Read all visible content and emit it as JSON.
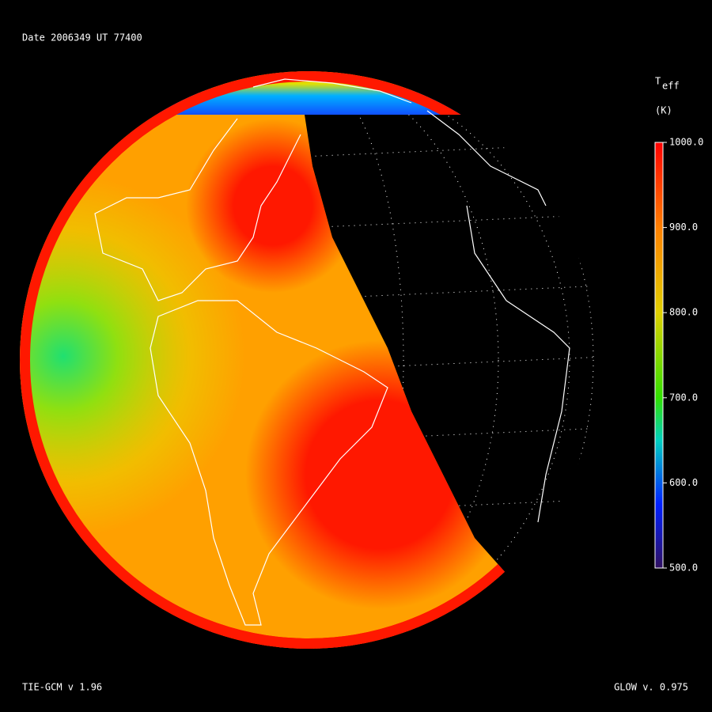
{
  "header": {
    "date": "Date 2006349  UT 77400"
  },
  "colorbar": {
    "label": "T",
    "label_sub": "eff",
    "unit": "(K)",
    "range": [
      500,
      1000
    ],
    "ticks": [
      {
        "value": 1000,
        "label": "1000.0"
      },
      {
        "value": 900,
        "label": "900.0"
      },
      {
        "value": 800,
        "label": "800.0"
      },
      {
        "value": 700,
        "label": "700.0"
      },
      {
        "value": 600,
        "label": "600.0"
      },
      {
        "value": 500,
        "label": "500.0"
      }
    ]
  },
  "footer": {
    "left": "TIE-GCM v 1.96",
    "right": "GLOW v. 0.975"
  }
}
